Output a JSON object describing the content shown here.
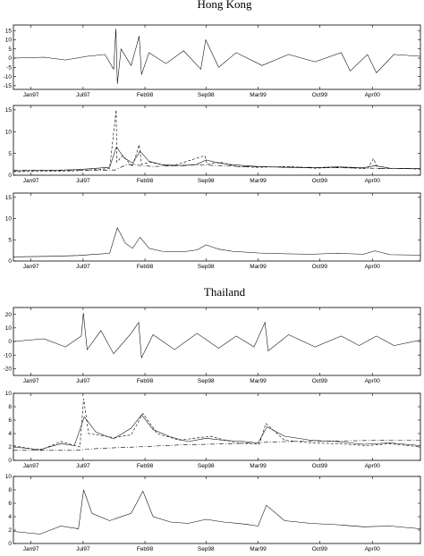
{
  "figure": {
    "sections": [
      {
        "title": "Hong Kong"
      },
      {
        "title": "Thailand"
      }
    ]
  },
  "colors": {
    "line": "#000000",
    "background": "#ffffff"
  },
  "chart_data": [
    {
      "type": "line",
      "section": "Hong Kong",
      "title": "",
      "xlabel": "",
      "ylabel": "",
      "xlim": [
        "1996-11-01",
        "2000-09-15"
      ],
      "ylim": [
        -17,
        18
      ],
      "y_ticks": [
        -15,
        -10,
        -5,
        0,
        5,
        10,
        15
      ],
      "x_ticks": [
        {
          "label": "Jan97",
          "date": "1997-01-01"
        },
        {
          "label": "Jul97",
          "date": "1997-07-01"
        },
        {
          "label": "Feb98",
          "date": "1998-02-01"
        },
        {
          "label": "Sep98",
          "date": "1998-09-01"
        },
        {
          "label": "Mar99",
          "date": "1999-03-01"
        },
        {
          "label": "Oct99",
          "date": "1999-10-01"
        },
        {
          "label": "Apr00",
          "date": "2000-04-01"
        }
      ],
      "grid": false,
      "legend": "none",
      "series": [
        {
          "style": "solid",
          "x": [
            "1996-11-01",
            "1997-02-15",
            "1997-05-01",
            "1997-07-15",
            "1997-09-15",
            "1997-10-15",
            "1997-10-23",
            "1997-10-28",
            "1997-11-10",
            "1997-12-15",
            "1998-01-12",
            "1998-01-20",
            "1998-02-15",
            "1998-04-15",
            "1998-06-15",
            "1998-08-14",
            "1998-08-31",
            "1998-10-15",
            "1998-12-15",
            "1999-03-15",
            "1999-06-15",
            "1999-09-15",
            "1999-12-15",
            "2000-01-15",
            "2000-03-15",
            "2000-04-15",
            "2000-06-15",
            "2000-09-15"
          ],
          "y": [
            0,
            0.5,
            -1,
            1,
            2,
            -6,
            16,
            -14,
            5,
            -4,
            12,
            -9,
            3,
            -3,
            4,
            -6,
            10,
            -5,
            3,
            -4,
            2,
            -2,
            3,
            -7,
            2,
            -8,
            2,
            1
          ]
        }
      ]
    },
    {
      "type": "line",
      "section": "Hong Kong",
      "title": "",
      "xlabel": "",
      "ylabel": "",
      "xlim": [
        "1996-11-01",
        "2000-09-15"
      ],
      "ylim": [
        0,
        16
      ],
      "y_ticks": [
        0,
        5,
        10,
        15
      ],
      "x_ticks": [
        {
          "label": "Jan97",
          "date": "1997-01-01"
        },
        {
          "label": "Jul97",
          "date": "1997-07-01"
        },
        {
          "label": "Feb98",
          "date": "1998-02-01"
        },
        {
          "label": "Sep98",
          "date": "1998-09-01"
        },
        {
          "label": "Mar99",
          "date": "1999-03-01"
        },
        {
          "label": "Oct99",
          "date": "1999-10-01"
        },
        {
          "label": "Apr00",
          "date": "2000-04-01"
        }
      ],
      "grid": false,
      "legend": "none",
      "series": [
        {
          "style": "solid",
          "x": [
            "1996-11-01",
            "1997-03-01",
            "1997-06-15",
            "1997-10-01",
            "1997-10-25",
            "1997-11-20",
            "1997-12-20",
            "1998-01-15",
            "1998-02-15",
            "1998-04-01",
            "1998-06-15",
            "1998-08-01",
            "1998-09-01",
            "1998-10-15",
            "1998-12-01",
            "1999-03-01",
            "1999-06-01",
            "1999-09-01",
            "1999-12-01",
            "2000-03-01",
            "2000-04-10",
            "2000-06-01",
            "2000-09-15"
          ],
          "y": [
            1.0,
            1.1,
            1.3,
            1.8,
            6.5,
            4.0,
            2.8,
            5.5,
            3.2,
            2.4,
            2.2,
            2.5,
            3.5,
            2.8,
            2.4,
            2.0,
            1.8,
            1.7,
            1.9,
            1.7,
            2.2,
            1.6,
            1.5
          ]
        },
        {
          "style": "dashed",
          "x": [
            "1996-11-01",
            "1997-06-01",
            "1997-10-01",
            "1997-10-24",
            "1997-10-26",
            "1997-11-15",
            "1997-12-20",
            "1998-01-12",
            "1998-01-20",
            "1998-02-20",
            "1998-05-01",
            "1998-08-28",
            "1998-09-05",
            "1998-10-20",
            "1998-12-15",
            "1999-03-01",
            "1999-06-15",
            "1999-09-15",
            "1999-12-01",
            "2000-03-15",
            "2000-04-05",
            "2000-04-20",
            "2000-06-15",
            "2000-09-15"
          ],
          "y": [
            0.8,
            1.0,
            1.5,
            15.0,
            3.0,
            4.5,
            2.0,
            7.0,
            2.5,
            3.0,
            2.0,
            4.5,
            2.5,
            3.0,
            2.0,
            1.8,
            2.0,
            1.6,
            1.8,
            1.5,
            3.8,
            1.5,
            1.6,
            1.4
          ]
        },
        {
          "style": "dashdot",
          "x": [
            "1996-11-01",
            "1997-06-01",
            "1997-10-20",
            "1997-12-01",
            "1998-03-01",
            "1998-08-01",
            "1999-01-01",
            "1999-09-01",
            "2000-04-01",
            "2000-09-15"
          ],
          "y": [
            1.1,
            1.1,
            1.2,
            2.5,
            2.0,
            2.4,
            2.0,
            1.8,
            1.6,
            1.5
          ]
        }
      ]
    },
    {
      "type": "line",
      "section": "Hong Kong",
      "title": "",
      "xlabel": "",
      "ylabel": "",
      "xlim": [
        "1996-11-01",
        "2000-09-15"
      ],
      "ylim": [
        0,
        16
      ],
      "y_ticks": [
        0,
        5,
        10,
        15
      ],
      "x_ticks": [
        {
          "label": "Jan97",
          "date": "1997-01-01"
        },
        {
          "label": "Jul97",
          "date": "1997-07-01"
        },
        {
          "label": "Feb98",
          "date": "1998-02-01"
        },
        {
          "label": "Sep98",
          "date": "1998-09-01"
        },
        {
          "label": "Mar99",
          "date": "1999-03-01"
        },
        {
          "label": "Oct99",
          "date": "1999-10-01"
        },
        {
          "label": "Apr00",
          "date": "2000-04-01"
        }
      ],
      "grid": false,
      "legend": "none",
      "series": [
        {
          "style": "solid",
          "x": [
            "1996-11-01",
            "1997-03-01",
            "1997-06-15",
            "1997-10-01",
            "1997-10-28",
            "1997-11-25",
            "1997-12-20",
            "1998-01-15",
            "1998-02-15",
            "1998-04-01",
            "1998-06-15",
            "1998-08-01",
            "1998-09-01",
            "1998-10-15",
            "1998-12-01",
            "1999-03-01",
            "1999-06-01",
            "1999-09-01",
            "1999-12-01",
            "2000-03-01",
            "2000-04-10",
            "2000-06-01",
            "2000-09-15"
          ],
          "y": [
            1.0,
            1.1,
            1.3,
            1.8,
            7.8,
            4.2,
            3.0,
            5.6,
            3.0,
            2.3,
            2.2,
            2.6,
            3.8,
            2.8,
            2.3,
            1.9,
            1.7,
            1.6,
            1.8,
            1.6,
            2.4,
            1.5,
            1.4
          ]
        }
      ]
    },
    {
      "type": "line",
      "section": "Thailand",
      "title": "",
      "xlabel": "",
      "ylabel": "",
      "xlim": [
        "1996-11-01",
        "2000-09-15"
      ],
      "ylim": [
        -25,
        25
      ],
      "y_ticks": [
        -20,
        -10,
        0,
        10,
        20
      ],
      "x_ticks": [
        {
          "label": "Jan97",
          "date": "1997-01-01"
        },
        {
          "label": "Jul97",
          "date": "1997-07-01"
        },
        {
          "label": "Feb98",
          "date": "1998-02-01"
        },
        {
          "label": "Sep98",
          "date": "1998-09-01"
        },
        {
          "label": "Mar99",
          "date": "1999-03-01"
        },
        {
          "label": "Oct99",
          "date": "1999-10-01"
        },
        {
          "label": "Apr00",
          "date": "2000-04-01"
        }
      ],
      "grid": false,
      "legend": "none",
      "series": [
        {
          "style": "solid",
          "x": [
            "1996-11-01",
            "1997-02-15",
            "1997-05-01",
            "1997-06-25",
            "1997-07-02",
            "1997-07-15",
            "1997-09-01",
            "1997-10-15",
            "1997-12-15",
            "1998-01-10",
            "1998-01-20",
            "1998-03-01",
            "1998-05-15",
            "1998-08-01",
            "1998-10-15",
            "1998-12-15",
            "1999-02-15",
            "1999-03-25",
            "1999-04-05",
            "1999-06-15",
            "1999-09-15",
            "1999-12-15",
            "2000-02-15",
            "2000-04-15",
            "2000-06-15",
            "2000-09-15"
          ],
          "y": [
            0,
            2,
            -4,
            4,
            21,
            -6,
            8,
            -9,
            6,
            14,
            -12,
            5,
            -6,
            6,
            -5,
            4,
            -4,
            14,
            -7,
            5,
            -4,
            4,
            -3,
            4,
            -3,
            1
          ]
        }
      ]
    },
    {
      "type": "line",
      "section": "Thailand",
      "title": "",
      "xlabel": "",
      "ylabel": "",
      "xlim": [
        "1996-11-01",
        "2000-09-15"
      ],
      "ylim": [
        0,
        10
      ],
      "y_ticks": [
        0,
        2,
        4,
        6,
        8,
        10
      ],
      "x_ticks": [
        {
          "label": "Jan97",
          "date": "1997-01-01"
        },
        {
          "label": "Jul97",
          "date": "1997-07-01"
        },
        {
          "label": "Feb98",
          "date": "1998-02-01"
        },
        {
          "label": "Sep98",
          "date": "1998-09-01"
        },
        {
          "label": "Mar99",
          "date": "1999-03-01"
        },
        {
          "label": "Oct99",
          "date": "1999-10-01"
        },
        {
          "label": "Apr00",
          "date": "2000-04-01"
        }
      ],
      "grid": false,
      "legend": "none",
      "series": [
        {
          "style": "solid",
          "x": [
            "1996-11-01",
            "1997-02-01",
            "1997-04-15",
            "1997-06-01",
            "1997-07-05",
            "1997-08-15",
            "1997-10-15",
            "1997-12-15",
            "1998-01-20",
            "1998-03-01",
            "1998-05-01",
            "1998-07-01",
            "1998-09-01",
            "1998-11-01",
            "1999-01-15",
            "1999-03-01",
            "1999-04-01",
            "1999-06-01",
            "1999-09-01",
            "1999-12-01",
            "2000-03-01",
            "2000-06-01",
            "2000-09-15"
          ],
          "y": [
            2.0,
            1.6,
            2.5,
            2.2,
            6.5,
            4.2,
            3.2,
            4.8,
            6.8,
            4.6,
            3.5,
            2.8,
            3.3,
            3.0,
            2.8,
            2.6,
            5.0,
            3.6,
            3.0,
            2.8,
            2.4,
            2.6,
            2.2
          ]
        },
        {
          "style": "dashed",
          "x": [
            "1996-11-01",
            "1997-02-01",
            "1997-04-15",
            "1997-06-20",
            "1997-07-03",
            "1997-07-20",
            "1997-10-15",
            "1997-12-15",
            "1998-01-25",
            "1998-03-15",
            "1998-06-01",
            "1998-09-15",
            "1998-12-15",
            "1999-03-05",
            "1999-03-28",
            "1999-06-01",
            "1999-09-01",
            "1999-12-01",
            "2000-03-15",
            "2000-06-01",
            "2000-09-15"
          ],
          "y": [
            2.2,
            1.5,
            2.8,
            2.0,
            9.2,
            4.0,
            3.4,
            3.8,
            7.0,
            4.0,
            3.0,
            3.6,
            2.6,
            2.4,
            5.5,
            3.0,
            2.6,
            2.5,
            2.2,
            2.5,
            2.0
          ]
        },
        {
          "style": "dashdot",
          "x": [
            "1996-11-01",
            "1997-06-01",
            "1997-09-01",
            "1998-01-01",
            "1998-06-01",
            "1998-12-01",
            "1999-06-01",
            "1999-12-01",
            "2000-06-01",
            "2000-09-15"
          ],
          "y": [
            1.5,
            1.5,
            1.8,
            2.0,
            2.3,
            2.5,
            2.8,
            2.9,
            3.0,
            3.0
          ]
        }
      ]
    },
    {
      "type": "line",
      "section": "Thailand",
      "title": "",
      "xlabel": "",
      "ylabel": "",
      "xlim": [
        "1996-11-01",
        "2000-09-15"
      ],
      "ylim": [
        0,
        10
      ],
      "y_ticks": [
        0,
        2,
        4,
        6,
        8,
        10
      ],
      "x_ticks": [
        {
          "label": "Jan97",
          "date": "1997-01-01"
        },
        {
          "label": "Jul97",
          "date": "1997-07-01"
        },
        {
          "label": "Feb98",
          "date": "1998-02-01"
        },
        {
          "label": "Sep98",
          "date": "1998-09-01"
        },
        {
          "label": "Mar99",
          "date": "1999-03-01"
        },
        {
          "label": "Oct99",
          "date": "1999-10-01"
        },
        {
          "label": "Apr00",
          "date": "2000-04-01"
        }
      ],
      "grid": false,
      "legend": "none",
      "series": [
        {
          "style": "solid",
          "x": [
            "1996-11-01",
            "1997-02-01",
            "1997-04-15",
            "1997-06-15",
            "1997-07-03",
            "1997-08-01",
            "1997-10-01",
            "1997-12-15",
            "1998-01-25",
            "1998-03-01",
            "1998-05-01",
            "1998-07-01",
            "1998-09-01",
            "1998-11-01",
            "1999-01-15",
            "1999-03-01",
            "1999-03-30",
            "1999-06-01",
            "1999-09-01",
            "1999-12-01",
            "2000-03-01",
            "2000-06-01",
            "2000-09-15"
          ],
          "y": [
            1.8,
            1.4,
            2.6,
            2.2,
            8.0,
            4.5,
            3.4,
            4.5,
            7.8,
            4.0,
            3.2,
            3.0,
            3.6,
            3.2,
            2.9,
            2.6,
            5.7,
            3.4,
            3.0,
            2.8,
            2.5,
            2.6,
            2.2
          ]
        }
      ]
    }
  ]
}
